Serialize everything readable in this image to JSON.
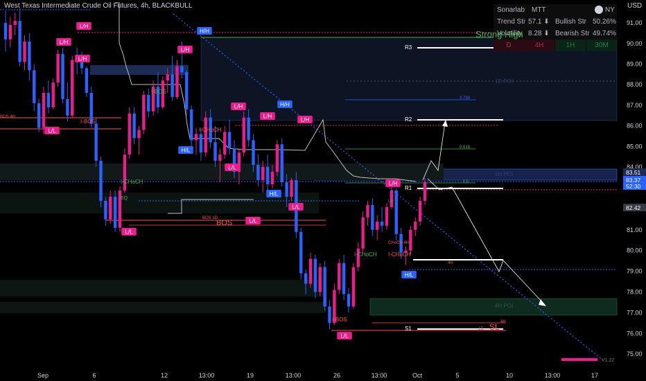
{
  "header": {
    "title": "West Texas Intermediate Crude Oil Futures, 4h, BLACKBULL"
  },
  "currency": "USD",
  "colors": {
    "bull": "#e91e8c",
    "bear": "#2962ff",
    "bg": "#000000",
    "support": "#ff5252",
    "pivot_green": "#4caf50",
    "label_pink": "#e91e8c"
  },
  "panel": {
    "brand": "Sonarlab",
    "mode": "MTT",
    "tz": "NY",
    "trend_label": "Trend Str",
    "trend_value": "57.1 ⬇",
    "bull_label": "Bullish Str",
    "bull_value": "50.26%",
    "vol_label": "Volatility",
    "vol_value": "8.28 ⬇",
    "bear_label": "Bearish Str",
    "bear_value": "49.74%",
    "tf_cells": [
      "D",
      "4H",
      "1H",
      "30M"
    ]
  },
  "strong_high_label": "Strong High",
  "version": "V1.22",
  "chart_data": {
    "type": "candlestick",
    "title": "West Texas Intermediate Crude Oil Futures, 4h, BLACKBULL",
    "ylim": [
      74.6,
      92.0
    ],
    "y_ticks": [
      75.0,
      76.0,
      77.0,
      78.0,
      79.0,
      80.0,
      81.0,
      82.0,
      84.0,
      85.0,
      86.0,
      87.0,
      88.0,
      89.0,
      90.0,
      91.0
    ],
    "x_ticks": [
      "Sep",
      "6",
      "12",
      "13:00",
      "19",
      "13:00",
      "26",
      "13:00",
      "Oct",
      "5",
      "10",
      "13:00",
      "17"
    ],
    "price_tags": [
      {
        "value": "83.51",
        "color": "#1e2a55"
      },
      {
        "value": "83.37",
        "color": "#2962ff"
      },
      {
        "value": "52:30",
        "color": "#2962ff"
      },
      {
        "value": "82.42",
        "color": "#363a45"
      }
    ],
    "candles": [
      [
        91.0,
        91.6,
        89.6,
        90.2
      ],
      [
        90.2,
        91.3,
        89.8,
        90.9
      ],
      [
        90.9,
        91.5,
        90.4,
        91.1
      ],
      [
        91.1,
        91.7,
        88.9,
        89.1
      ],
      [
        89.1,
        90.4,
        88.7,
        90.1
      ],
      [
        90.1,
        90.5,
        88.2,
        88.7
      ],
      [
        88.7,
        89.0,
        86.7,
        87.1
      ],
      [
        87.1,
        87.3,
        85.7,
        85.9
      ],
      [
        85.9,
        87.9,
        85.6,
        87.6
      ],
      [
        87.6,
        88.2,
        86.6,
        86.9
      ],
      [
        86.9,
        88.3,
        86.8,
        88.1
      ],
      [
        88.1,
        89.7,
        87.9,
        89.5
      ],
      [
        89.5,
        89.8,
        87.1,
        87.3
      ],
      [
        87.3,
        88.1,
        86.2,
        86.5
      ],
      [
        86.5,
        89.4,
        86.4,
        89.2
      ],
      [
        89.2,
        89.8,
        88.5,
        89.1
      ],
      [
        89.1,
        89.6,
        88.5,
        88.8
      ],
      [
        88.8,
        88.9,
        87.4,
        87.6
      ],
      [
        87.6,
        87.9,
        85.9,
        86.1
      ],
      [
        86.1,
        86.4,
        84.0,
        84.3
      ],
      [
        84.3,
        84.5,
        82.1,
        82.4
      ],
      [
        82.4,
        82.6,
        81.2,
        81.5
      ],
      [
        81.5,
        82.9,
        81.3,
        82.6
      ],
      [
        82.6,
        82.9,
        80.9,
        81.1
      ],
      [
        81.1,
        83.1,
        80.9,
        82.9
      ],
      [
        82.9,
        84.9,
        82.8,
        84.6
      ],
      [
        84.6,
        86.9,
        84.4,
        86.6
      ],
      [
        86.6,
        86.9,
        85.1,
        85.4
      ],
      [
        85.4,
        86.0,
        84.6,
        85.8
      ],
      [
        85.8,
        87.7,
        85.6,
        87.5
      ],
      [
        87.5,
        87.8,
        86.4,
        86.7
      ],
      [
        86.7,
        88.2,
        86.5,
        87.9
      ],
      [
        87.9,
        88.6,
        86.6,
        86.9
      ],
      [
        86.9,
        88.4,
        86.8,
        88.2
      ],
      [
        88.2,
        88.8,
        87.6,
        88.5
      ],
      [
        88.5,
        89.4,
        87.2,
        87.4
      ],
      [
        87.4,
        89.2,
        87.3,
        88.9
      ],
      [
        88.9,
        90.1,
        88.3,
        88.6
      ],
      [
        88.6,
        88.7,
        86.5,
        86.8
      ],
      [
        86.8,
        87.0,
        85.0,
        85.3
      ],
      [
        85.3,
        85.9,
        84.6,
        85.6
      ],
      [
        85.6,
        85.9,
        84.3,
        84.7
      ],
      [
        84.7,
        86.7,
        84.5,
        86.4
      ],
      [
        86.4,
        86.8,
        84.9,
        85.2
      ],
      [
        85.2,
        86.0,
        84.0,
        84.3
      ],
      [
        84.3,
        84.9,
        83.3,
        84.6
      ],
      [
        84.6,
        86.0,
        84.4,
        85.7
      ],
      [
        85.7,
        86.3,
        84.6,
        84.9
      ],
      [
        84.9,
        85.3,
        83.5,
        83.8
      ],
      [
        83.8,
        84.9,
        83.2,
        84.7
      ],
      [
        84.7,
        86.7,
        84.5,
        86.4
      ],
      [
        86.4,
        86.8,
        85.0,
        85.3
      ],
      [
        85.3,
        85.6,
        83.8,
        84.1
      ],
      [
        84.1,
        84.6,
        83.1,
        83.4
      ],
      [
        83.4,
        84.3,
        82.8,
        84.0
      ],
      [
        84.0,
        84.6,
        82.9,
        83.2
      ],
      [
        83.2,
        84.1,
        83.0,
        83.8
      ],
      [
        83.8,
        85.3,
        83.6,
        85.1
      ],
      [
        85.1,
        85.4,
        83.1,
        83.3
      ],
      [
        83.3,
        83.7,
        82.1,
        82.6
      ],
      [
        82.6,
        83.5,
        82.4,
        83.4
      ],
      [
        83.4,
        83.8,
        80.6,
        80.9
      ],
      [
        80.9,
        81.1,
        78.6,
        78.9
      ],
      [
        78.9,
        79.1,
        77.9,
        78.4
      ],
      [
        78.4,
        79.9,
        78.2,
        79.6
      ],
      [
        79.6,
        79.8,
        77.7,
        78.0
      ],
      [
        78.0,
        79.4,
        77.8,
        79.2
      ],
      [
        79.2,
        79.5,
        77.1,
        77.3
      ],
      [
        77.3,
        77.6,
        76.2,
        76.5
      ],
      [
        76.5,
        78.4,
        76.4,
        78.1
      ],
      [
        78.1,
        79.6,
        77.9,
        79.4
      ],
      [
        79.4,
        79.8,
        77.6,
        77.9
      ],
      [
        77.9,
        78.2,
        77.0,
        77.3
      ],
      [
        77.3,
        79.4,
        77.2,
        79.2
      ],
      [
        79.2,
        80.4,
        79.0,
        80.1
      ],
      [
        80.1,
        81.9,
        79.9,
        81.6
      ],
      [
        81.6,
        82.4,
        81.2,
        82.2
      ],
      [
        82.2,
        82.5,
        80.7,
        81.0
      ],
      [
        81.0,
        81.7,
        80.5,
        81.4
      ],
      [
        81.4,
        82.1,
        80.9,
        81.2
      ],
      [
        81.2,
        82.3,
        81.0,
        82.1
      ],
      [
        82.1,
        83.2,
        82.0,
        82.9
      ],
      [
        82.9,
        83.0,
        80.5,
        80.8
      ],
      [
        80.8,
        81.1,
        79.6,
        79.9
      ],
      [
        79.9,
        80.2,
        79.3,
        80.0
      ],
      [
        80.0,
        81.2,
        79.8,
        81.0
      ],
      [
        81.0,
        81.6,
        80.7,
        81.4
      ],
      [
        81.4,
        82.6,
        81.2,
        82.4
      ],
      [
        82.4,
        83.5,
        82.2,
        83.3
      ]
    ],
    "levels": [
      {
        "label": "R3",
        "value": 89.8
      },
      {
        "label": "R2",
        "value": 86.2
      },
      {
        "label": "R1",
        "value": 82.85
      },
      {
        "label": "S1",
        "value": 76.3
      }
    ],
    "fib_labels": [
      "0.786",
      "0.618",
      "0.5"
    ],
    "zone_labels": [
      "1D POI",
      "4H POI",
      "4H POI"
    ],
    "structure_labels": [
      "L/H",
      "L/H",
      "H/H",
      "L/H",
      "L/H",
      "H/H",
      "L/H",
      "L/H",
      "H/L",
      "L/L",
      "L/L",
      "H/L",
      "L/L",
      "L/L",
      "L/L",
      "H/L",
      "L/H"
    ],
    "annotations": [
      "I-BOS",
      "BOS",
      "BOS 1D",
      "I-CHoCH",
      "I-BOS",
      "I-CHoCH",
      "I-CHoCH",
      "CHoCH 4H",
      "I-BOS",
      "LH",
      "4H",
      "1D",
      "SL",
      "4H",
      "BOS 4H",
      "EQ"
    ]
  }
}
